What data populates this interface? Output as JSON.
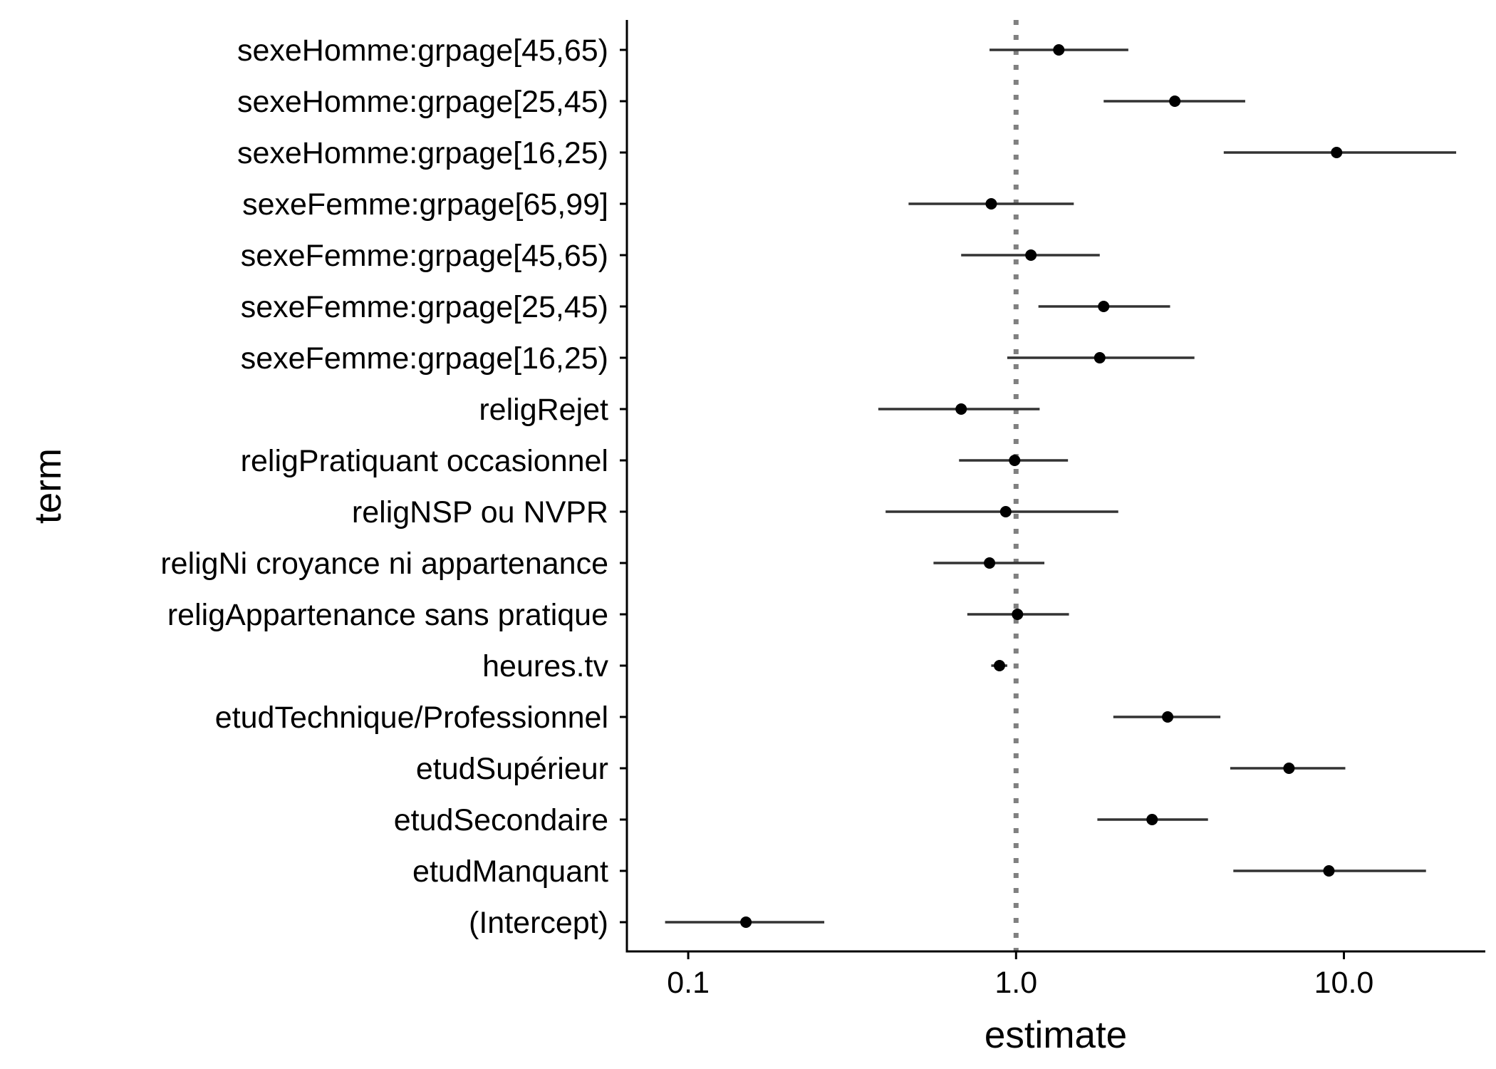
{
  "chart_data": {
    "type": "forest",
    "title": "",
    "xlabel": "estimate",
    "ylabel": "term",
    "x_scale": "log10",
    "xlim": [
      0.065,
      27
    ],
    "x_ticks": [
      {
        "value": 0.1,
        "label": "0.1"
      },
      {
        "value": 1.0,
        "label": "1.0"
      },
      {
        "value": 10.0,
        "label": "10.0"
      }
    ],
    "reference_line": {
      "value": 1.0,
      "style": "dotted",
      "color": "#808080"
    },
    "colors": {
      "point": "#000000",
      "interval": "#333333",
      "axis": "#000000"
    },
    "grid": false,
    "legend": "none",
    "rows": [
      {
        "term": "sexeHomme:grpage[45,65)",
        "estimate": 1.35,
        "low": 0.83,
        "high": 2.2
      },
      {
        "term": "sexeHomme:grpage[25,45)",
        "estimate": 3.05,
        "low": 1.85,
        "high": 5.0
      },
      {
        "term": "sexeHomme:grpage[16,25)",
        "estimate": 9.5,
        "low": 4.3,
        "high": 22.0
      },
      {
        "term": "sexeFemme:grpage[65,99]",
        "estimate": 0.84,
        "low": 0.47,
        "high": 1.5
      },
      {
        "term": "sexeFemme:grpage[45,65)",
        "estimate": 1.11,
        "low": 0.68,
        "high": 1.8
      },
      {
        "term": "sexeFemme:grpage[25,45)",
        "estimate": 1.85,
        "low": 1.17,
        "high": 2.95
      },
      {
        "term": "sexeFemme:grpage[16,25)",
        "estimate": 1.8,
        "low": 0.94,
        "high": 3.5
      },
      {
        "term": "religRejet",
        "estimate": 0.68,
        "low": 0.38,
        "high": 1.18
      },
      {
        "term": "religPratiquant occasionnel",
        "estimate": 0.99,
        "low": 0.67,
        "high": 1.44
      },
      {
        "term": "religNSP ou NVPR",
        "estimate": 0.93,
        "low": 0.4,
        "high": 2.05
      },
      {
        "term": "religNi croyance ni appartenance",
        "estimate": 0.83,
        "low": 0.56,
        "high": 1.22
      },
      {
        "term": "religAppartenance sans pratique",
        "estimate": 1.01,
        "low": 0.71,
        "high": 1.45
      },
      {
        "term": "heures.tv",
        "estimate": 0.89,
        "low": 0.84,
        "high": 0.94
      },
      {
        "term": "etudTechnique/Professionnel",
        "estimate": 2.9,
        "low": 1.98,
        "high": 4.2
      },
      {
        "term": "etudSupérieur",
        "estimate": 6.8,
        "low": 4.5,
        "high": 10.1
      },
      {
        "term": "etudSecondaire",
        "estimate": 2.6,
        "low": 1.77,
        "high": 3.85
      },
      {
        "term": "etudManquant",
        "estimate": 9.0,
        "low": 4.6,
        "high": 17.8
      },
      {
        "term": "(Intercept)",
        "estimate": 0.15,
        "low": 0.085,
        "high": 0.26
      }
    ]
  }
}
